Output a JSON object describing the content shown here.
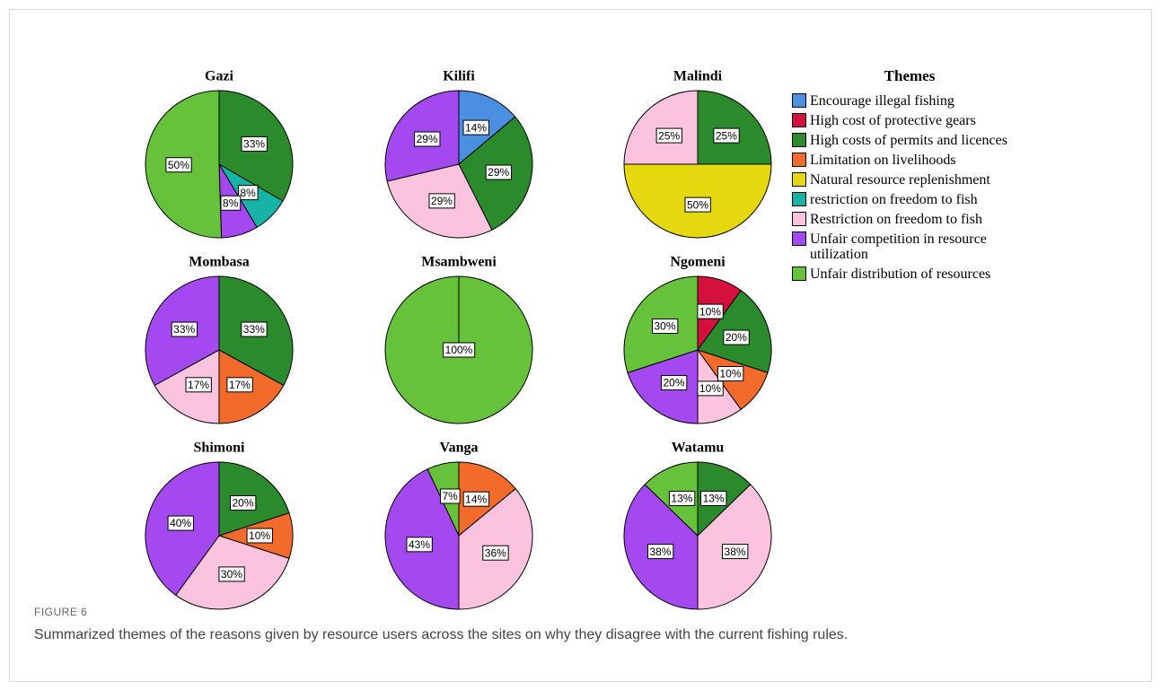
{
  "legend": {
    "title": "Themes",
    "items": [
      {
        "name": "Encourage illegal fishing",
        "color": "#4b8fe0"
      },
      {
        "name": "High cost of protective gears",
        "color": "#d4103c"
      },
      {
        "name": "High costs of permits and licences",
        "color": "#2b8a2b"
      },
      {
        "name": "Limitation on livelihoods",
        "color": "#f26b2a"
      },
      {
        "name": "Natural resource replenishment",
        "color": "#e6d80f"
      },
      {
        "name": "restriction on freedom to fish",
        "color": "#17b3a6"
      },
      {
        "name": "Restriction on freedom to fish",
        "color": "#fbc3dd"
      },
      {
        "name": "Unfair competition in resource utilization",
        "color": "#a448f0"
      },
      {
        "name": "Unfair distribution of resources",
        "color": "#66c23a"
      }
    ]
  },
  "figure_label": "FIGURE 6",
  "caption": "Summarized themes of the reasons given by resource users across the sites on why they disagree with the current fishing rules.",
  "chart_data": [
    {
      "type": "pie",
      "title": "Gazi",
      "values": [
        33,
        8,
        8,
        50
      ],
      "value_labels": [
        "33%",
        "8%",
        "8%",
        "50%"
      ],
      "colors": [
        "#2b8a2b",
        "#17b3a6",
        "#a448f0",
        "#66c23a"
      ]
    },
    {
      "type": "pie",
      "title": "Kilifi",
      "values": [
        14,
        29,
        29,
        29
      ],
      "value_labels": [
        "14%",
        "29%",
        "29%",
        "29%"
      ],
      "colors": [
        "#4b8fe0",
        "#2b8a2b",
        "#fbc3dd",
        "#a448f0"
      ]
    },
    {
      "type": "pie",
      "title": "Malindi",
      "values": [
        25,
        50,
        25
      ],
      "value_labels": [
        "25%",
        "50%",
        "25%"
      ],
      "colors": [
        "#2b8a2b",
        "#e6d80f",
        "#fbc3dd"
      ]
    },
    {
      "type": "pie",
      "title": "Mombasa",
      "values": [
        33,
        17,
        17,
        33
      ],
      "value_labels": [
        "33%",
        "17%",
        "17%",
        "33%"
      ],
      "colors": [
        "#2b8a2b",
        "#f26b2a",
        "#fbc3dd",
        "#a448f0"
      ]
    },
    {
      "type": "pie",
      "title": "Msambweni",
      "values": [
        100
      ],
      "value_labels": [
        "100%"
      ],
      "colors": [
        "#66c23a"
      ]
    },
    {
      "type": "pie",
      "title": "Ngomeni",
      "values": [
        10,
        20,
        10,
        10,
        20,
        30
      ],
      "value_labels": [
        "10%",
        "20%",
        "10%",
        "10%",
        "20%",
        "30%"
      ],
      "colors": [
        "#d4103c",
        "#2b8a2b",
        "#f26b2a",
        "#fbc3dd",
        "#a448f0",
        "#66c23a"
      ]
    },
    {
      "type": "pie",
      "title": "Shimoni",
      "values": [
        20,
        10,
        30,
        40
      ],
      "value_labels": [
        "20%",
        "10%",
        "30%",
        "40%"
      ],
      "colors": [
        "#2b8a2b",
        "#f26b2a",
        "#fbc3dd",
        "#a448f0"
      ]
    },
    {
      "type": "pie",
      "title": "Vanga",
      "values": [
        14,
        36,
        43,
        7
      ],
      "value_labels": [
        "14%",
        "36%",
        "43%",
        "7%"
      ],
      "colors": [
        "#f26b2a",
        "#fbc3dd",
        "#a448f0",
        "#66c23a"
      ]
    },
    {
      "type": "pie",
      "title": "Watamu",
      "values": [
        13,
        38,
        38,
        13
      ],
      "value_labels": [
        "13%",
        "38%",
        "38%",
        "13%"
      ],
      "colors": [
        "#2b8a2b",
        "#fbc3dd",
        "#a448f0",
        "#66c23a"
      ]
    }
  ]
}
